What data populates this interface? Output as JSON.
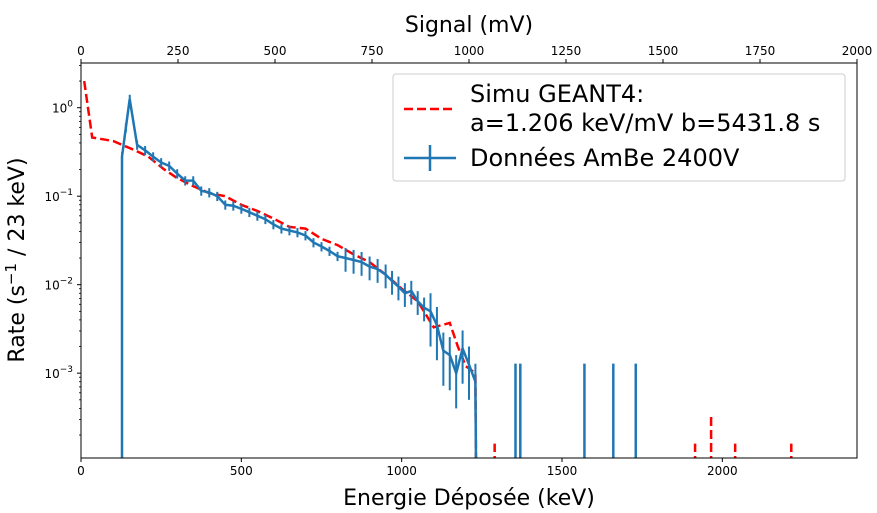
{
  "chart_data": {
    "type": "line",
    "xlabel": "Energie Déposée (keV)",
    "top_xlabel": "Signal (mV)",
    "ylabel_main": "Rate (s",
    "ylabel_sup": "−1",
    "ylabel_tail": " / 23 keV)",
    "xlim": [
      0,
      2420
    ],
    "top_xlim": [
      0,
      2000
    ],
    "ylim": [
      0.00011,
      3.2
    ],
    "yscale": "log",
    "xticks": [
      0,
      500,
      1000,
      1500,
      2000
    ],
    "xtick_labels": [
      "0",
      "500",
      "1000",
      "1500",
      "2000"
    ],
    "top_xticks": [
      0,
      250,
      500,
      750,
      1000,
      1250,
      1500,
      1750,
      2000
    ],
    "top_xtick_labels": [
      "0",
      "250",
      "500",
      "750",
      "1000",
      "1250",
      "1500",
      "1750",
      "2000"
    ],
    "yticks": [
      0.001,
      0.01,
      0.1,
      1
    ],
    "ytick_labels": [
      {
        "base": "10",
        "exp": "−3"
      },
      {
        "base": "10",
        "exp": "−2"
      },
      {
        "base": "10",
        "exp": "−1"
      },
      {
        "base": "10",
        "exp": "0"
      }
    ],
    "legend_position": "upper right",
    "legend": {
      "simu_line1": "Simu GEANT4:",
      "simu_line2": "a=1.206 keV/mV   b=5431.8 s",
      "data_label": "Données AmBe 2400V"
    },
    "series": [
      {
        "name": "Simu GEANT4: a=1.206 keV/mV b=5431.8 s",
        "color": "#ff0000",
        "style": "dashed",
        "x": [
          10,
          35,
          100,
          160,
          210,
          260,
          300,
          350,
          400,
          450,
          500,
          550,
          600,
          650,
          700,
          750,
          800,
          850,
          900,
          950,
          1000,
          1050,
          1100,
          1150,
          1175,
          1200,
          1230
        ],
        "y": [
          2.0,
          0.46,
          0.42,
          0.34,
          0.28,
          0.2,
          0.16,
          0.13,
          0.108,
          0.1,
          0.08,
          0.068,
          0.056,
          0.045,
          0.043,
          0.033,
          0.028,
          0.022,
          0.018,
          0.013,
          0.009,
          0.0065,
          0.0033,
          0.0037,
          0.002,
          0.0012,
          0.001
        ],
        "sparse_points": [
          {
            "x": 1290,
            "y": 0.00016
          },
          {
            "x": 1915,
            "y": 0.00016
          },
          {
            "x": 1965,
            "y": 0.00032
          },
          {
            "x": 2040,
            "y": 0.00016
          },
          {
            "x": 2215,
            "y": 0.00016
          }
        ]
      },
      {
        "name": "Données AmBe 2400V",
        "color": "#1f77b4",
        "style": "solid-with-errorbars",
        "x": [
          128,
          140,
          152,
          175,
          200,
          225,
          250,
          275,
          300,
          325,
          350,
          375,
          400,
          425,
          450,
          475,
          500,
          525,
          550,
          575,
          600,
          625,
          650,
          675,
          700,
          725,
          750,
          775,
          800,
          825,
          850,
          875,
          900,
          925,
          950,
          970,
          990,
          1010,
          1030,
          1050,
          1070,
          1090,
          1110,
          1130,
          1150,
          1170,
          1190,
          1210,
          1230
        ],
        "y": [
          0.28,
          0.6,
          1.25,
          0.38,
          0.33,
          0.28,
          0.24,
          0.22,
          0.18,
          0.15,
          0.15,
          0.115,
          0.11,
          0.1,
          0.08,
          0.078,
          0.072,
          0.066,
          0.06,
          0.055,
          0.048,
          0.043,
          0.041,
          0.039,
          0.036,
          0.03,
          0.027,
          0.024,
          0.021,
          0.02,
          0.019,
          0.018,
          0.016,
          0.015,
          0.013,
          0.011,
          0.0095,
          0.008,
          0.0085,
          0.0065,
          0.0055,
          0.005,
          0.0035,
          0.0018,
          0.0016,
          0.001,
          0.0019,
          0.00125,
          0.0008
        ],
        "sparse_points": [
          {
            "x": 1355,
            "y": 0.0008
          },
          {
            "x": 1370,
            "y": 0.0008
          },
          {
            "x": 1570,
            "y": 0.0008
          },
          {
            "x": 1660,
            "y": 0.0008
          },
          {
            "x": 1730,
            "y": 0.0008
          }
        ]
      }
    ]
  }
}
